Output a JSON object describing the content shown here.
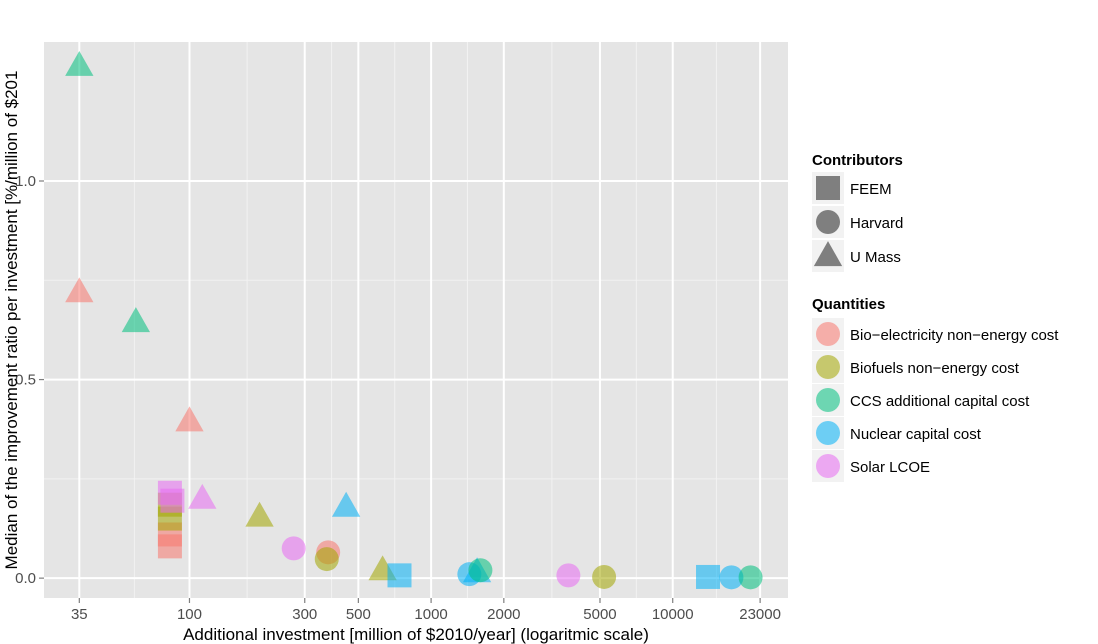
{
  "chart_data": {
    "type": "scatter",
    "title": "",
    "xlabel": "Additional investment [million of $2010/year] (logaritmic scale)",
    "ylabel": "Median of the improvement ratio per investment [%/million of $201",
    "x_scale": "log",
    "xlim": [
      25,
      30000
    ],
    "ylim": [
      -0.05,
      1.35
    ],
    "x_ticks": [
      35,
      100,
      300,
      500,
      1000,
      2000,
      5000,
      10000,
      23000
    ],
    "x_tick_labels": [
      "35",
      "100",
      "300",
      "500",
      "1000",
      "2000",
      "5000",
      "10000",
      "23000"
    ],
    "y_ticks": [
      0.0,
      0.5,
      1.0
    ],
    "y_tick_labels": [
      "0.0",
      "0.5",
      "1.0"
    ],
    "grid": true,
    "panel_background": "#e5e5e5",
    "legend_position": "right",
    "legend_shape": {
      "title": "Contributors",
      "entries": [
        {
          "label": "FEEM",
          "shape": "square"
        },
        {
          "label": "Harvard",
          "shape": "circle"
        },
        {
          "label": "U Mass",
          "shape": "triangle"
        }
      ]
    },
    "legend_color": {
      "title": "Quantities",
      "entries": [
        {
          "label": "Bio−electricity non−energy cost",
          "color": "#f8766d"
        },
        {
          "label": "Biofuels non−energy cost",
          "color": "#a3a500"
        },
        {
          "label": "CCS additional capital cost",
          "color": "#00bf7d"
        },
        {
          "label": "Nuclear capital cost",
          "color": "#00b0f6"
        },
        {
          "label": "Solar LCOE",
          "color": "#e76bf3"
        }
      ]
    },
    "points": [
      {
        "x": 35,
        "y": 1.29,
        "shape": "triangle",
        "quantity": 2
      },
      {
        "x": 35,
        "y": 0.72,
        "shape": "triangle",
        "quantity": 0
      },
      {
        "x": 60,
        "y": 0.645,
        "shape": "triangle",
        "quantity": 2
      },
      {
        "x": 100,
        "y": 0.395,
        "shape": "triangle",
        "quantity": 0
      },
      {
        "x": 113,
        "y": 0.2,
        "shape": "triangle",
        "quantity": 4
      },
      {
        "x": 195,
        "y": 0.155,
        "shape": "triangle",
        "quantity": 1
      },
      {
        "x": 445,
        "y": 0.18,
        "shape": "triangle",
        "quantity": 3
      },
      {
        "x": 630,
        "y": 0.02,
        "shape": "triangle",
        "quantity": 1
      },
      {
        "x": 1550,
        "y": 0.015,
        "shape": "triangle",
        "quantity": 3
      },
      {
        "x": 83,
        "y": 0.08,
        "shape": "square",
        "quantity": 0
      },
      {
        "x": 83,
        "y": 0.11,
        "shape": "square",
        "quantity": 0
      },
      {
        "x": 83,
        "y": 0.15,
        "shape": "square",
        "quantity": 1
      },
      {
        "x": 83,
        "y": 0.185,
        "shape": "square",
        "quantity": 1
      },
      {
        "x": 83,
        "y": 0.215,
        "shape": "square",
        "quantity": 4
      },
      {
        "x": 85,
        "y": 0.195,
        "shape": "square",
        "quantity": 4
      },
      {
        "x": 740,
        "y": 0.007,
        "shape": "square",
        "quantity": 3
      },
      {
        "x": 14000,
        "y": 0.003,
        "shape": "square",
        "quantity": 3
      },
      {
        "x": 270,
        "y": 0.075,
        "shape": "circle",
        "quantity": 4
      },
      {
        "x": 375,
        "y": 0.065,
        "shape": "circle",
        "quantity": 0
      },
      {
        "x": 370,
        "y": 0.048,
        "shape": "circle",
        "quantity": 1
      },
      {
        "x": 1440,
        "y": 0.01,
        "shape": "circle",
        "quantity": 3
      },
      {
        "x": 1600,
        "y": 0.02,
        "shape": "circle",
        "quantity": 2
      },
      {
        "x": 3700,
        "y": 0.007,
        "shape": "circle",
        "quantity": 4
      },
      {
        "x": 5200,
        "y": 0.003,
        "shape": "circle",
        "quantity": 1
      },
      {
        "x": 17500,
        "y": 0.002,
        "shape": "circle",
        "quantity": 3
      },
      {
        "x": 21000,
        "y": 0.002,
        "shape": "circle",
        "quantity": 2
      }
    ]
  }
}
